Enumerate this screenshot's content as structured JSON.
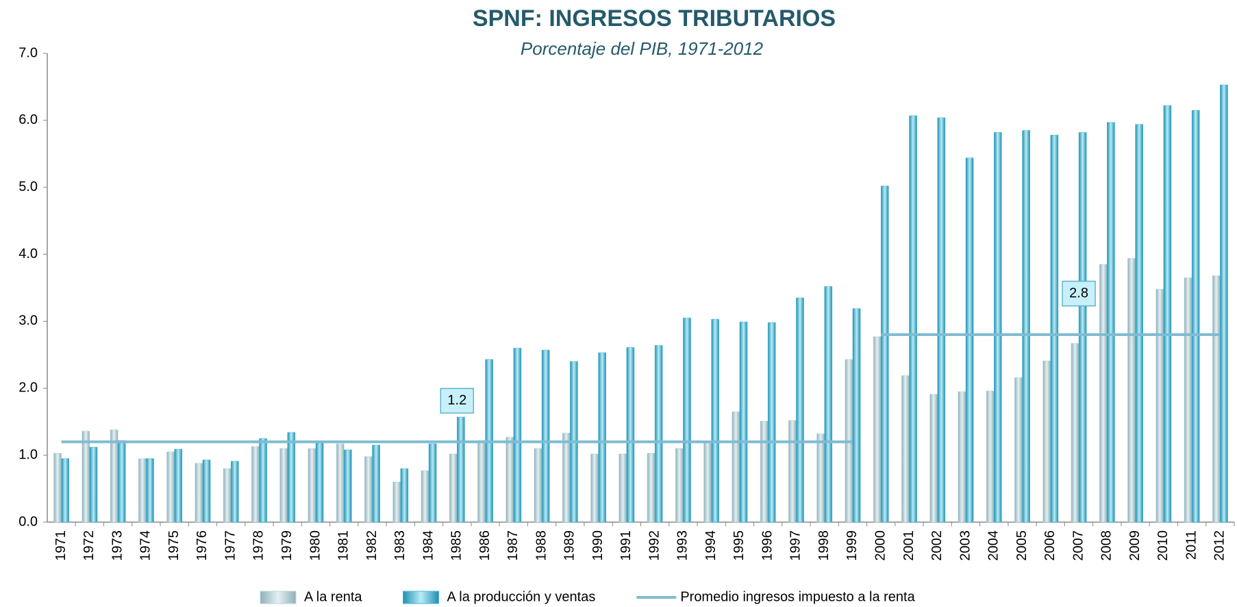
{
  "chart_data": {
    "type": "bar",
    "title": "SPNF: INGRESOS TRIBUTARIOS",
    "subtitle": "Porcentaje del PIB, 1971-2012",
    "categories": [
      "1971",
      "1972",
      "1973",
      "1974",
      "1975",
      "1976",
      "1977",
      "1978",
      "1979",
      "1980",
      "1981",
      "1982",
      "1983",
      "1984",
      "1985",
      "1986",
      "1987",
      "1988",
      "1989",
      "1990",
      "1991",
      "1992",
      "1993",
      "1994",
      "1995",
      "1996",
      "1997",
      "1998",
      "1999",
      "2000",
      "2001",
      "2002",
      "2003",
      "2004",
      "2005",
      "2006",
      "2007",
      "2008",
      "2009",
      "2010",
      "2011",
      "2012"
    ],
    "series": [
      {
        "name": "A la renta",
        "color": "#b9d5dc",
        "type": "bar",
        "values": [
          1.03,
          1.36,
          1.38,
          0.95,
          1.05,
          0.88,
          0.8,
          1.13,
          1.1,
          1.1,
          1.17,
          0.98,
          0.6,
          0.77,
          1.02,
          1.22,
          1.27,
          1.1,
          1.33,
          1.02,
          1.02,
          1.03,
          1.1,
          1.18,
          1.65,
          1.51,
          1.52,
          1.32,
          2.43,
          2.77,
          2.19,
          1.91,
          1.95,
          1.96,
          2.16,
          2.41,
          2.67,
          3.85,
          3.94,
          3.48,
          3.65,
          3.68
        ]
      },
      {
        "name": "A la producción y ventas",
        "color": "#4fb6d2",
        "type": "bar",
        "values": [
          0.95,
          1.12,
          1.22,
          0.95,
          1.09,
          0.93,
          0.91,
          1.25,
          1.34,
          1.18,
          1.08,
          1.15,
          0.8,
          1.17,
          1.57,
          2.43,
          2.6,
          2.57,
          2.4,
          2.53,
          2.61,
          2.64,
          3.05,
          3.03,
          2.99,
          2.98,
          3.35,
          3.52,
          3.19,
          5.02,
          6.07,
          6.04,
          5.44,
          5.82,
          5.85,
          5.78,
          5.82,
          5.97,
          5.94,
          6.22,
          6.15,
          6.53
        ]
      },
      {
        "name": "Promedio ingresos impuesto a la renta",
        "color": "#7fbcd2",
        "type": "line",
        "values": [
          1.2,
          1.2,
          1.2,
          1.2,
          1.2,
          1.2,
          1.2,
          1.2,
          1.2,
          1.2,
          1.2,
          1.2,
          1.2,
          1.2,
          1.2,
          1.2,
          1.2,
          1.2,
          1.2,
          1.2,
          1.2,
          1.2,
          1.2,
          1.2,
          1.2,
          1.2,
          1.2,
          1.2,
          1.2,
          2.8,
          2.8,
          2.8,
          2.8,
          2.8,
          2.8,
          2.8,
          2.8,
          2.8,
          2.8,
          2.8,
          2.8,
          2.8
        ]
      }
    ],
    "ylim": [
      0,
      7
    ],
    "yticks": [
      {
        "value": 0,
        "label": "0.0"
      },
      {
        "value": 1,
        "label": "1.0"
      },
      {
        "value": 2,
        "label": "2.0"
      },
      {
        "value": 3,
        "label": "3.0"
      },
      {
        "value": 4,
        "label": "4.0"
      },
      {
        "value": 5,
        "label": "5.0"
      },
      {
        "value": 6,
        "label": "6.0"
      },
      {
        "value": 7,
        "label": "7.0"
      }
    ],
    "grid": false,
    "legend": "bottom"
  }
}
